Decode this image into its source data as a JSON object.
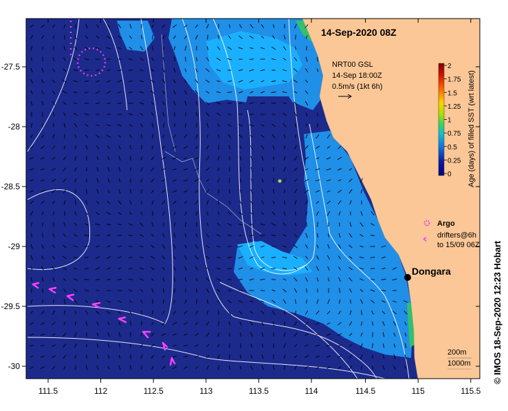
{
  "map": {
    "title": "14-Sep-2020 08Z",
    "current_info": {
      "line1": "NRT00 GSL",
      "line2": "14-Sep 18:00Z",
      "line3": "0.5m/s (1kt 6h)"
    },
    "colorbar": {
      "label": "Age (days) of filled SST (wrt latest)",
      "ticks": [
        "2",
        "1.75",
        "1.5",
        "1.25",
        "1",
        "0.75",
        "0.5",
        "0.25",
        "0"
      ],
      "colors": [
        "#7a0000",
        "#d01000",
        "#ff6000",
        "#ffd000",
        "#b0e000",
        "#30d070",
        "#10c0d0",
        "#1070e0",
        "#0a1aa0",
        "#00007a"
      ]
    },
    "legend": {
      "argo_label": "Argo",
      "drifters_line1": "drifters@6h",
      "drifters_line2": "to 15/09 06Z"
    },
    "place": {
      "name": "Dongara"
    },
    "depth_legend": {
      "line1": "200m",
      "line2": "1000m"
    },
    "credit": "© IMOS 18-Sep-2020 12:23 Hobart",
    "x_ticks": [
      "111.5",
      "112",
      "112.5",
      "113",
      "113.5",
      "114",
      "114.5",
      "115",
      "115.5"
    ],
    "y_ticks": [
      "-27.5",
      "-28",
      "-28.5",
      "-29",
      "-29.5",
      "-30"
    ],
    "colors": {
      "ocean": "#1c2a8c",
      "ocean_light": "#1f8fe8",
      "ocean_cyan": "#1ab0ff",
      "land": "#fbc796",
      "argo": "#e040e0",
      "drifter": "#ff40ff",
      "contour": "#ffffff"
    }
  }
}
